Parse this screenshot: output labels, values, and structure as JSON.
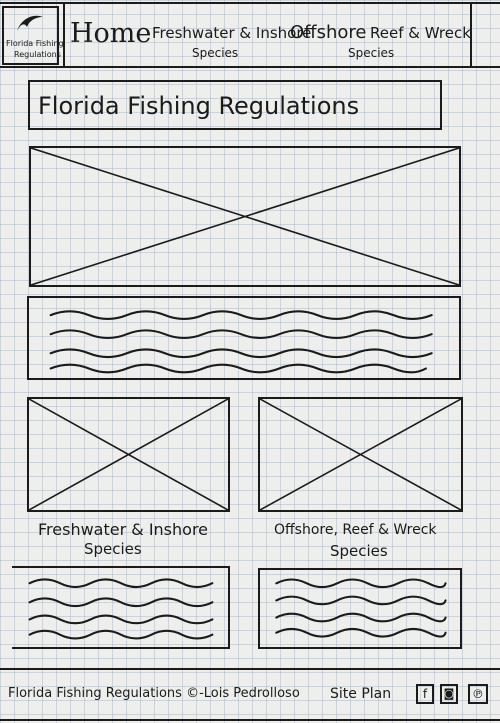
{
  "nav": {
    "logo_text": [
      "Florida Fishing",
      "Regulations"
    ],
    "items": [
      {
        "label": "Home"
      },
      {
        "label": "Freshwater & Inshore",
        "sub": "Species"
      },
      {
        "label": "Offshore",
        "sub": ""
      },
      {
        "label": "Reef & Wreck",
        "sub": "Species"
      }
    ]
  },
  "banner": {
    "title": "Florida Fishing Regulations"
  },
  "hero": {
    "label": "image placeholder"
  },
  "intro": {
    "label": "text placeholder"
  },
  "cards": [
    {
      "title": "Freshwater & Inshore",
      "subtitle": "Species"
    },
    {
      "title": "Offshore, Reef & Wreck",
      "subtitle": "Species"
    }
  ],
  "footer": {
    "credit": "Florida Fishing Regulations ©-Lois Pedrolloso",
    "site_plan": "Site Plan",
    "social": [
      {
        "name": "facebook-icon",
        "glyph": "f"
      },
      {
        "name": "instagram-icon",
        "glyph": "◙"
      },
      {
        "name": "pinterest-icon",
        "glyph": "℗"
      }
    ]
  }
}
